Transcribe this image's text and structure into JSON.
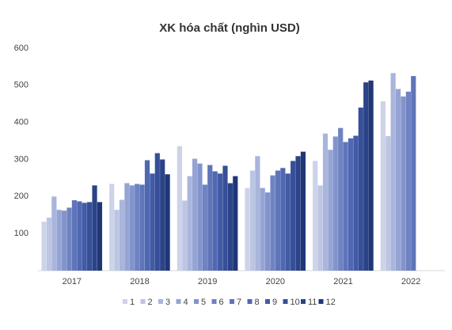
{
  "chart_data": {
    "type": "bar",
    "title": "XK hóa chất (nghìn USD)",
    "categories": [
      "2017",
      "2018",
      "2019",
      "2020",
      "2021",
      "2022"
    ],
    "ylim": [
      0,
      600
    ],
    "yticks": [
      100,
      200,
      300,
      400,
      500,
      600
    ],
    "grid": false,
    "legend": "bottom",
    "series": [
      {
        "name": "1",
        "color": "#cdd3e8",
        "values": [
          132,
          234,
          336,
          223,
          296,
          457
        ]
      },
      {
        "name": "2",
        "color": "#bcc6e3",
        "values": [
          143,
          164,
          189,
          270,
          230,
          363
        ]
      },
      {
        "name": "3",
        "color": "#a9b5db",
        "values": [
          200,
          191,
          255,
          309,
          370,
          533
        ]
      },
      {
        "name": "4",
        "color": "#95a4d3",
        "values": [
          164,
          236,
          302,
          223,
          326,
          490
        ]
      },
      {
        "name": "5",
        "color": "#8294cb",
        "values": [
          162,
          230,
          289,
          211,
          362,
          470
        ]
      },
      {
        "name": "6",
        "color": "#6f83c2",
        "values": [
          170,
          234,
          232,
          257,
          385,
          483
        ]
      },
      {
        "name": "7",
        "color": "#5f75ba",
        "values": [
          190,
          232,
          285,
          270,
          347,
          525
        ]
      },
      {
        "name": "8",
        "color": "#5068b2",
        "values": [
          187,
          298,
          268,
          277,
          357,
          null
        ]
      },
      {
        "name": "9",
        "color": "#425ba6",
        "values": [
          183,
          262,
          262,
          262,
          364,
          null
        ]
      },
      {
        "name": "10",
        "color": "#364f98",
        "values": [
          185,
          317,
          283,
          296,
          440,
          null
        ]
      },
      {
        "name": "11",
        "color": "#2b4389",
        "values": [
          230,
          300,
          236,
          309,
          508,
          null
        ]
      },
      {
        "name": "12",
        "color": "#203776",
        "values": [
          185,
          260,
          255,
          321,
          513,
          null
        ]
      }
    ]
  }
}
